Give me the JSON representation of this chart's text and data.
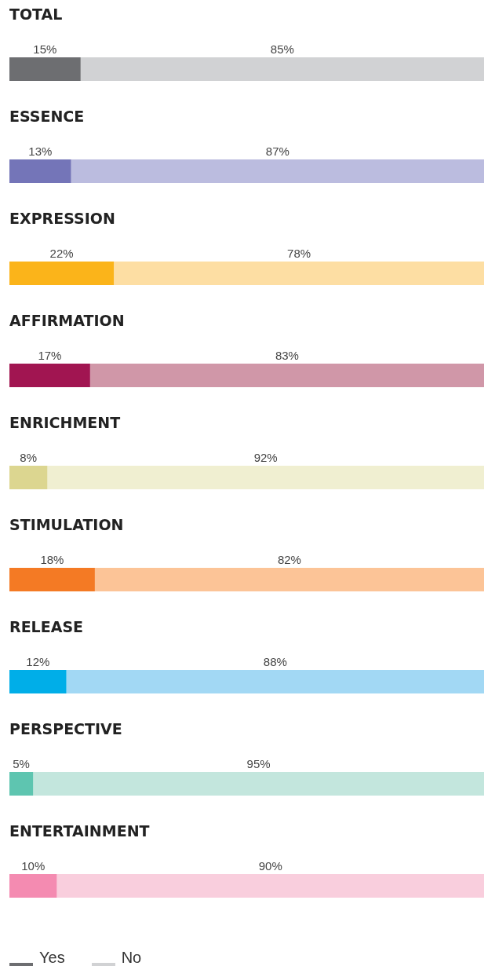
{
  "chart_data": {
    "type": "bar",
    "orientation": "horizontal",
    "stacked": true,
    "categories": [
      "TOTAL",
      "ESSENCE",
      "EXPRESSION",
      "AFFIRMATION",
      "ENRICHMENT",
      "STIMULATION",
      "RELEASE",
      "PERSPECTIVE",
      "ENTERTAINMENT"
    ],
    "xlim": [
      0,
      100
    ],
    "tick_labels": "y",
    "legend": "bottom left",
    "series": [
      {
        "name": "Yes",
        "color": "#6d6e71",
        "colors": [
          "#6d6e71",
          "#7475b8",
          "#fbb41a",
          "#a11551",
          "#dcd690",
          "#f47a24",
          "#00aee8",
          "#5ec5b0",
          "#f48bb1"
        ],
        "values": [
          15,
          13,
          22,
          17,
          8,
          18,
          12,
          5,
          10
        ],
        "value_labels": [
          "15%",
          "13%",
          "22%",
          "17%",
          "8%",
          "18%",
          "12%",
          "5%",
          "10%"
        ]
      },
      {
        "name": "No",
        "color": "#d1d2d4",
        "colors": [
          "#d1d2d4",
          "#bbbcdf",
          "#fddea3",
          "#d097a8",
          "#f0efd1",
          "#fcc497",
          "#a2d8f4",
          "#c3e6dd",
          "#f9cedd"
        ],
        "values": [
          85,
          87,
          78,
          83,
          92,
          82,
          88,
          95,
          90
        ],
        "value_labels": [
          "85%",
          "87%",
          "78%",
          "83%",
          "92%",
          "82%",
          "88%",
          "95%",
          "90%"
        ]
      }
    ]
  }
}
